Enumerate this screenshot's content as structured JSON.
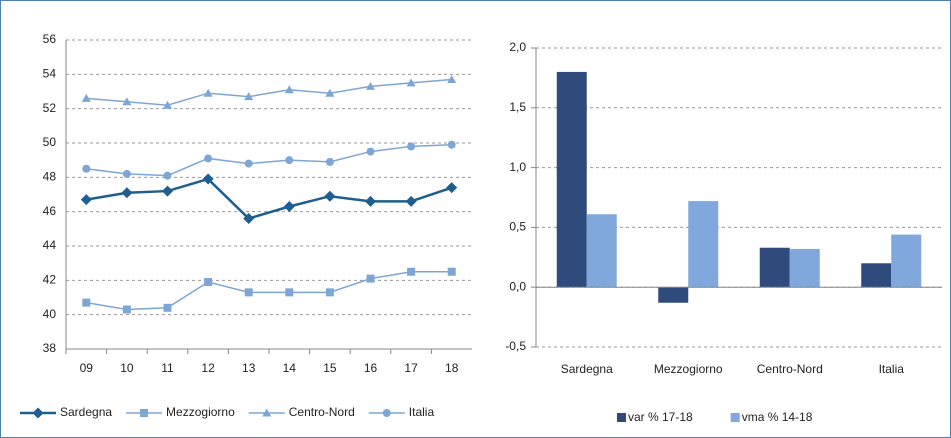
{
  "chart_data": [
    {
      "type": "line",
      "categories": [
        "09",
        "10",
        "11",
        "12",
        "13",
        "14",
        "15",
        "16",
        "17",
        "18"
      ],
      "ylim": [
        38,
        56
      ],
      "yticks": [
        38,
        40,
        42,
        44,
        46,
        48,
        50,
        52,
        54,
        56
      ],
      "grid": true,
      "legend": "bottom",
      "series": [
        {
          "name": "Sardegna",
          "color": "#1f5f8f",
          "marker": "diamond",
          "values": [
            46.7,
            47.1,
            47.2,
            47.9,
            45.6,
            46.3,
            46.9,
            46.6,
            46.6,
            47.4
          ]
        },
        {
          "name": "Mezzogiorno",
          "color": "#7ea6d4",
          "marker": "square",
          "values": [
            40.7,
            40.3,
            40.4,
            41.9,
            41.3,
            41.3,
            41.3,
            42.1,
            42.5,
            42.5
          ]
        },
        {
          "name": "Centro-Nord",
          "color": "#7ea6d4",
          "marker": "triangle",
          "values": [
            52.6,
            52.4,
            52.2,
            52.9,
            52.7,
            53.1,
            52.9,
            53.3,
            53.5,
            53.7
          ]
        },
        {
          "name": "Italia",
          "color": "#7ea6d4",
          "marker": "circle",
          "values": [
            48.5,
            48.2,
            48.1,
            49.1,
            48.8,
            49.0,
            48.9,
            49.5,
            49.8,
            49.9
          ]
        }
      ]
    },
    {
      "type": "bar",
      "categories": [
        "Sardegna",
        "Mezzogiorno",
        "Centro-Nord",
        "Italia"
      ],
      "ylim": [
        -0.5,
        2.0
      ],
      "yticks": [
        {
          "value": -0.5,
          "label": "-0,5"
        },
        {
          "value": 0,
          "label": "0,0"
        },
        {
          "value": 0.5,
          "label": "0,5"
        },
        {
          "value": 1.0,
          "label": "1,0"
        },
        {
          "value": 1.5,
          "label": "1,5"
        },
        {
          "value": 2.0,
          "label": "2,0"
        }
      ],
      "grid": true,
      "legend": "bottom",
      "series": [
        {
          "name": "var % 17-18",
          "color": "#2f4b7c",
          "values": [
            1.8,
            -0.13,
            0.33,
            0.2
          ]
        },
        {
          "name": "vma % 14-18",
          "color": "#80a8dc",
          "values": [
            0.61,
            0.72,
            0.32,
            0.44
          ]
        }
      ]
    }
  ]
}
